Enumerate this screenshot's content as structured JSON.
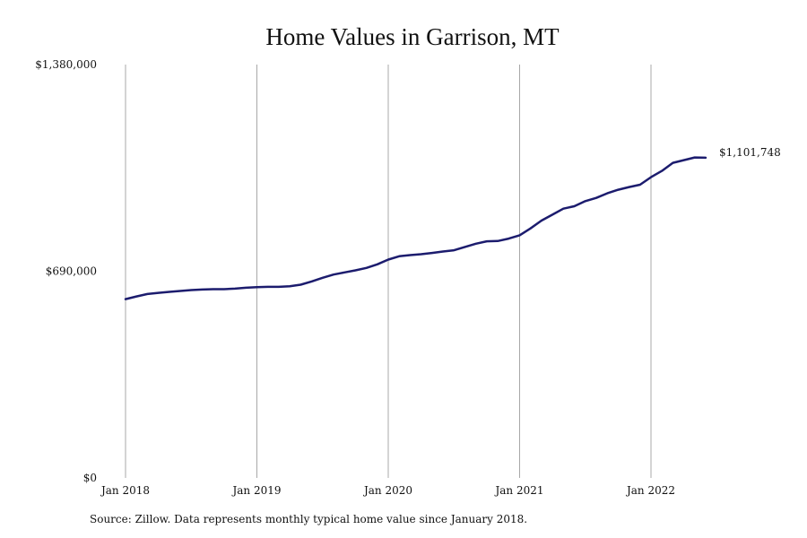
{
  "chart_data": {
    "type": "line",
    "title": "Home Values in Garrison, MT",
    "xlabel": "",
    "ylabel": "",
    "x_tick_labels": [
      "Jan 2018",
      "Jan 2019",
      "Jan 2020",
      "Jan 2021",
      "Jan 2022"
    ],
    "y_tick_labels": [
      "$0",
      "$690,000",
      "$1,380,000"
    ],
    "ylim": [
      0,
      1380000
    ],
    "xlim": [
      "2018-01",
      "2022-08"
    ],
    "grid": "vertical lines at each January",
    "line_color": "#1c1c6e",
    "grid_color": "#a8a8a8",
    "series": [
      {
        "x": [
          "2018-01",
          "2018-02",
          "2018-03",
          "2018-04",
          "2018-05",
          "2018-06",
          "2018-07",
          "2018-08",
          "2018-09",
          "2018-10",
          "2018-11",
          "2018-12",
          "2019-01",
          "2019-02",
          "2019-03",
          "2019-04",
          "2019-05",
          "2019-06",
          "2019-07",
          "2019-08",
          "2019-09",
          "2019-10",
          "2019-11",
          "2019-12",
          "2020-01",
          "2020-02",
          "2020-03",
          "2020-04",
          "2020-05",
          "2020-06",
          "2020-07",
          "2020-08",
          "2020-09",
          "2020-10",
          "2020-11",
          "2020-12",
          "2021-01",
          "2021-02",
          "2021-03",
          "2021-04",
          "2021-05",
          "2021-06",
          "2021-07",
          "2021-08",
          "2021-09",
          "2021-10",
          "2021-11",
          "2021-12",
          "2022-01",
          "2022-02",
          "2022-03",
          "2022-04",
          "2022-05",
          "2022-06"
        ],
        "values": [
          597000,
          606000,
          614000,
          618000,
          621000,
          624000,
          627000,
          629000,
          630000,
          630000,
          632000,
          635000,
          637000,
          638000,
          638000,
          640000,
          645000,
          656000,
          668000,
          679000,
          686000,
          693000,
          701000,
          713000,
          729000,
          740000,
          744000,
          747000,
          751000,
          756000,
          760000,
          771000,
          782000,
          790000,
          791000,
          799000,
          810000,
          833000,
          859000,
          879000,
          899000,
          907000,
          924000,
          935000,
          950000,
          962000,
          971000,
          979000,
          1004000,
          1025000,
          1052000,
          1061000,
          1070000,
          1069000
        ]
      }
    ],
    "end_label": "$1,101,748"
  },
  "footer": {
    "source": "Source: Zillow. Data represents monthly typical home value since January 2018."
  }
}
